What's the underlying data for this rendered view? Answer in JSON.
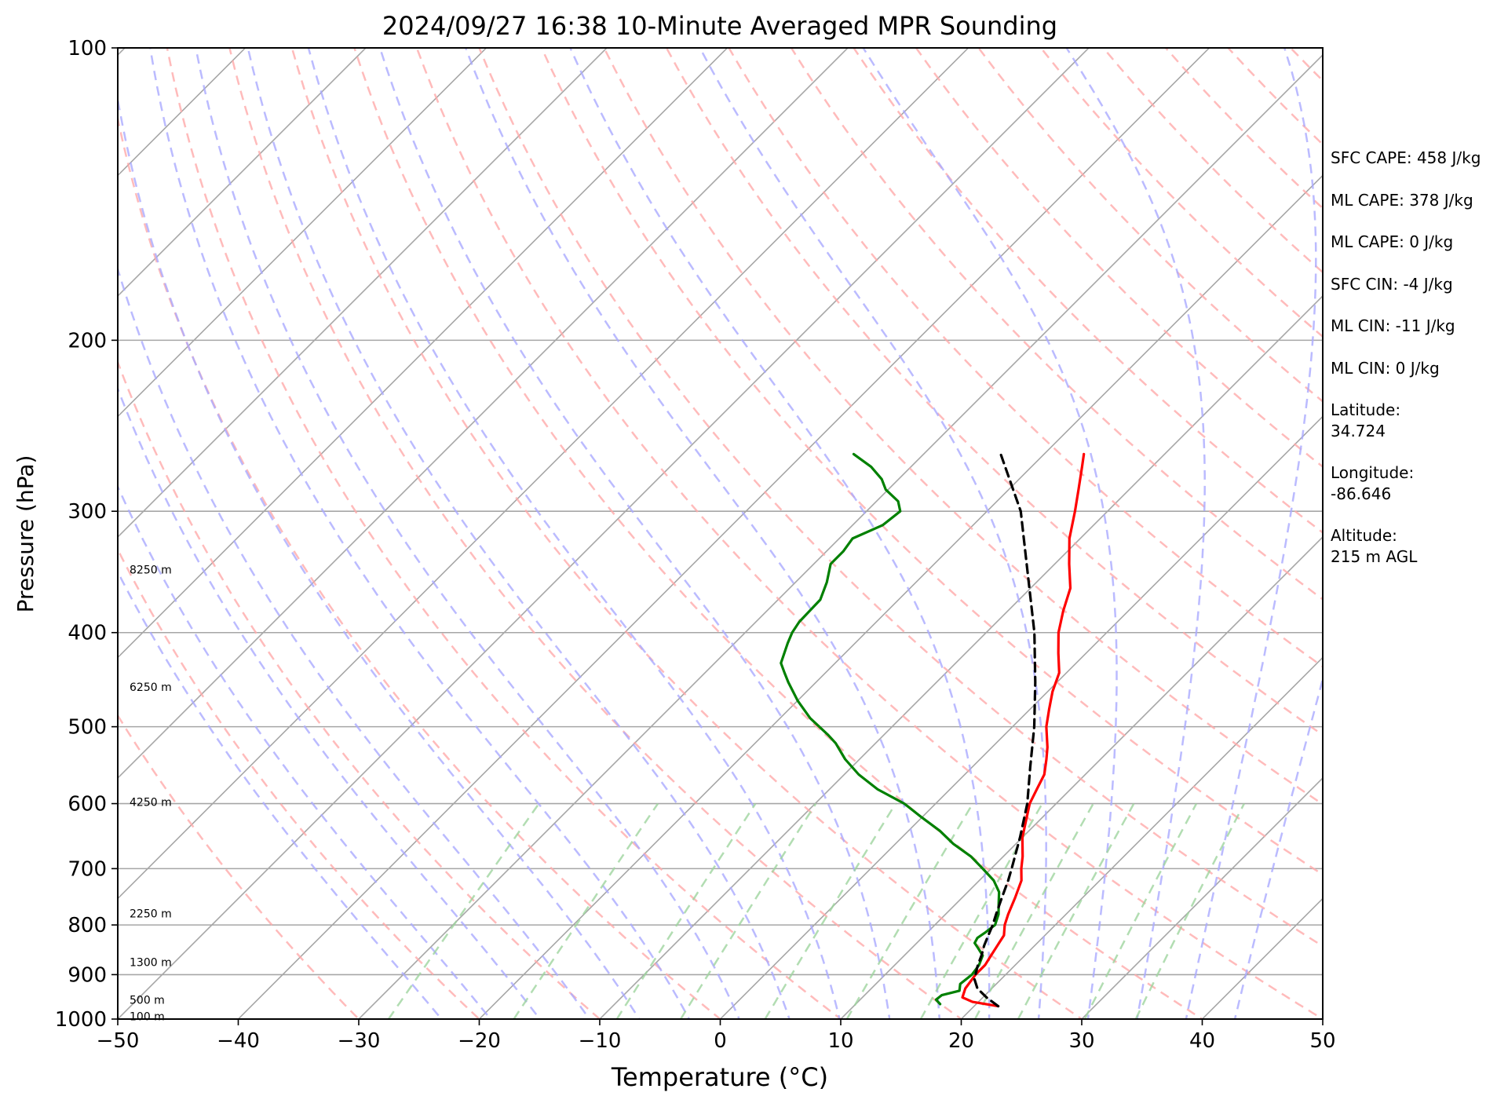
{
  "chart_data": {
    "type": "line",
    "subtype": "skew-t log-p sounding",
    "title": "2024/09/27 16:38 10-Minute Averaged MPR Sounding",
    "xlabel": "Temperature (°C)",
    "ylabel": "Pressure (hPa)",
    "xlim": [
      -50,
      50
    ],
    "ylim": [
      1000,
      100
    ],
    "y_scale": "log",
    "x_ticks": [
      "−50",
      "−40",
      "−30",
      "−20",
      "−10",
      "0",
      "10",
      "20",
      "30",
      "40",
      "50"
    ],
    "x_tick_values": [
      -50,
      -40,
      -30,
      -20,
      -10,
      0,
      10,
      20,
      30,
      40,
      50
    ],
    "y_ticks": [
      "100",
      "200",
      "300",
      "400",
      "500",
      "600",
      "700",
      "800",
      "900",
      "1000"
    ],
    "y_tick_values": [
      100,
      200,
      300,
      400,
      500,
      600,
      700,
      800,
      900,
      1000
    ],
    "grid": true,
    "height_labels": [
      {
        "label": "8250 m",
        "p": 345
      },
      {
        "label": "6250 m",
        "p": 456
      },
      {
        "label": "4250 m",
        "p": 599
      },
      {
        "label": "2250 m",
        "p": 780
      },
      {
        "label": "1300 m",
        "p": 875
      },
      {
        "label": "500 m",
        "p": 957
      },
      {
        "label": "100 m",
        "p": 995
      }
    ],
    "series": [
      {
        "id": "temperature",
        "color": "#ff0000",
        "points": [
          [
            970,
            22.0
          ],
          [
            960,
            19.5
          ],
          [
            950,
            18.3
          ],
          [
            930,
            17.8
          ],
          [
            900,
            17.5
          ],
          [
            880,
            17.5
          ],
          [
            860,
            17.2
          ],
          [
            840,
            16.9
          ],
          [
            820,
            16.6
          ],
          [
            800,
            15.8
          ],
          [
            780,
            15.2
          ],
          [
            750,
            14.4
          ],
          [
            720,
            13.5
          ],
          [
            700,
            12.5
          ],
          [
            680,
            11.6
          ],
          [
            650,
            10.0
          ],
          [
            620,
            8.7
          ],
          [
            600,
            7.8
          ],
          [
            580,
            7.2
          ],
          [
            560,
            6.6
          ],
          [
            540,
            5.5
          ],
          [
            525,
            4.6
          ],
          [
            500,
            2.8
          ],
          [
            480,
            1.6
          ],
          [
            460,
            0.4
          ],
          [
            440,
            -0.6
          ],
          [
            420,
            -2.3
          ],
          [
            400,
            -4.0
          ],
          [
            380,
            -5.4
          ],
          [
            360,
            -6.7
          ],
          [
            340,
            -8.8
          ],
          [
            320,
            -10.9
          ],
          [
            300,
            -12.7
          ],
          [
            285,
            -14.2
          ],
          [
            270,
            -15.8
          ],
          [
            262,
            -16.7
          ]
        ]
      },
      {
        "id": "dewpoint",
        "color": "#008000",
        "points": [
          [
            965,
            17.0
          ],
          [
            955,
            16.3
          ],
          [
            945,
            16.4
          ],
          [
            935,
            17.5
          ],
          [
            920,
            17.0
          ],
          [
            900,
            17.2
          ],
          [
            880,
            17.0
          ],
          [
            860,
            16.5
          ],
          [
            845,
            15.5
          ],
          [
            835,
            14.8
          ],
          [
            825,
            14.6
          ],
          [
            815,
            14.8
          ],
          [
            800,
            15.0
          ],
          [
            780,
            14.4
          ],
          [
            760,
            13.5
          ],
          [
            740,
            12.6
          ],
          [
            720,
            11.2
          ],
          [
            700,
            9.3
          ],
          [
            680,
            7.3
          ],
          [
            660,
            4.8
          ],
          [
            640,
            2.6
          ],
          [
            620,
            0.0
          ],
          [
            600,
            -2.6
          ],
          [
            580,
            -6.0
          ],
          [
            560,
            -8.8
          ],
          [
            540,
            -11.2
          ],
          [
            520,
            -13.3
          ],
          [
            510,
            -14.6
          ],
          [
            490,
            -17.5
          ],
          [
            470,
            -20.0
          ],
          [
            450,
            -22.3
          ],
          [
            440,
            -23.4
          ],
          [
            430,
            -24.5
          ],
          [
            410,
            -25.6
          ],
          [
            400,
            -26.1
          ],
          [
            390,
            -26.4
          ],
          [
            370,
            -26.5
          ],
          [
            355,
            -27.4
          ],
          [
            340,
            -28.6
          ],
          [
            330,
            -28.6
          ],
          [
            320,
            -28.9
          ],
          [
            310,
            -27.5
          ],
          [
            300,
            -27.2
          ],
          [
            293,
            -28.2
          ],
          [
            285,
            -30.2
          ],
          [
            278,
            -31.4
          ],
          [
            270,
            -33.3
          ],
          [
            262,
            -35.8
          ]
        ]
      },
      {
        "id": "parcel",
        "color": "#000000",
        "points": [
          [
            970,
            22.0
          ],
          [
            950,
            20.3
          ],
          [
            930,
            18.8
          ],
          [
            910,
            17.8
          ],
          [
            900,
            17.5
          ],
          [
            880,
            16.9
          ],
          [
            860,
            16.4
          ],
          [
            840,
            15.8
          ],
          [
            820,
            15.3
          ],
          [
            800,
            14.8
          ],
          [
            780,
            14.2
          ],
          [
            750,
            13.3
          ],
          [
            720,
            12.4
          ],
          [
            700,
            11.7
          ],
          [
            650,
            9.8
          ],
          [
            600,
            7.6
          ],
          [
            550,
            4.8
          ],
          [
            500,
            1.8
          ],
          [
            450,
            -1.8
          ],
          [
            400,
            -6.0
          ],
          [
            350,
            -11.2
          ],
          [
            300,
            -17.2
          ],
          [
            262,
            -23.6
          ]
        ]
      }
    ]
  },
  "annotations": [
    "SFC CAPE: 458 J/kg",
    "ML CAPE: 378 J/kg",
    "ML CAPE: 0 J/kg",
    "SFC CIN: -4 J/kg",
    "ML CIN: -11 J/kg",
    "ML CIN: 0 J/kg",
    "Latitude:\n34.724",
    "Longitude:\n-86.646",
    "Altitude:\n215 m AGL"
  ],
  "colors": {
    "isotherm": "#a6a6a6",
    "dry_adiabat": "#ffaaaa",
    "moist_adiabat": "#aaaaff",
    "mixing_ratio": "#9fd49f",
    "temperature": "#ff0000",
    "dewpoint": "#008000",
    "parcel": "#000000"
  }
}
